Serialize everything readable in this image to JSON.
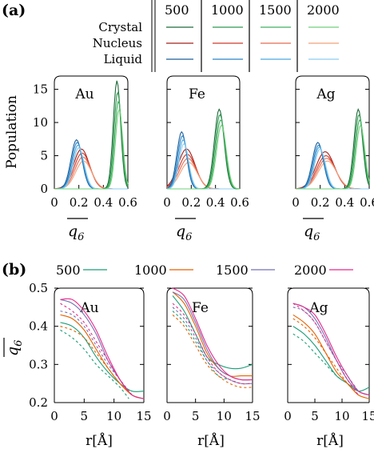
{
  "panel_labels": {
    "a": "(a)",
    "b": "(b)"
  },
  "legend_a": {
    "rows": [
      "Crystal",
      "Nucleus",
      "Liquid"
    ],
    "columns": [
      "500",
      "1000",
      "1500",
      "2000"
    ],
    "shades": {
      "Crystal": [
        "#1e6b3a",
        "#2f9a4f",
        "#3fb060",
        "#6fd07a"
      ],
      "Nucleus": [
        "#a8201a",
        "#d23a2a",
        "#e86a50",
        "#f2a07a"
      ],
      "Liquid": [
        "#1f5f9a",
        "#2a84c8",
        "#4aa8e0",
        "#8ccdf0"
      ]
    }
  },
  "legend_b": {
    "entries": [
      {
        "label": "500",
        "color": "#1b9e77"
      },
      {
        "label": "1000",
        "color": "#e66101"
      },
      {
        "label": "1500",
        "color": "#7570b3"
      },
      {
        "label": "2000",
        "color": "#e7298a"
      }
    ]
  },
  "chart_data": [
    {
      "type": "line",
      "panel": "a",
      "name": "Au",
      "ylabel": "Population",
      "xlabel": "q6 (overlined)",
      "xlim": [
        0,
        0.6
      ],
      "ylim": [
        0,
        17
      ],
      "xticks": [
        "0",
        "0.2",
        "0.4",
        "0.6"
      ],
      "yticks": [
        "0",
        "5",
        "10",
        "15"
      ],
      "peaks": {
        "Liquid": {
          "center": 0.19,
          "width": 0.045,
          "heights": [
            7.4,
            7.0,
            6.6,
            6.2
          ]
        },
        "Nucleus": {
          "center": 0.23,
          "width": 0.065,
          "heights": [
            6.0,
            5.4,
            4.8,
            4.2
          ]
        },
        "Crystal": {
          "center": 0.52,
          "width": 0.03,
          "heights": [
            16.3,
            14.6,
            13.2,
            12.0
          ]
        }
      }
    },
    {
      "type": "line",
      "panel": "a",
      "name": "Fe",
      "xlim": [
        0,
        0.6
      ],
      "ylim": [
        0,
        17
      ],
      "xticks": [
        "0",
        "0.2",
        "0.4",
        "0.6"
      ],
      "peaks": {
        "Liquid": {
          "center": 0.13,
          "width": 0.04,
          "heights": [
            8.6,
            8.0,
            7.4,
            6.8
          ]
        },
        "Nucleus": {
          "center": 0.17,
          "width": 0.07,
          "heights": [
            6.0,
            5.2,
            4.6,
            4.0
          ]
        },
        "Crystal": {
          "center": 0.44,
          "width": 0.04,
          "heights": [
            12.0,
            11.2,
            10.4,
            9.6
          ]
        }
      }
    },
    {
      "type": "line",
      "panel": "a",
      "name": "Ag",
      "xlim": [
        0,
        0.6
      ],
      "ylim": [
        0,
        17
      ],
      "xticks": [
        "0",
        "0.2",
        "0.4",
        "0.6"
      ],
      "peaks": {
        "Liquid": {
          "center": 0.19,
          "width": 0.045,
          "heights": [
            7.0,
            6.6,
            6.3,
            6.0
          ]
        },
        "Nucleus": {
          "center": 0.25,
          "width": 0.075,
          "heights": [
            5.6,
            5.0,
            4.6,
            4.2
          ]
        },
        "Crystal": {
          "center": 0.52,
          "width": 0.035,
          "heights": [
            12.0,
            11.2,
            10.4,
            9.6
          ]
        }
      }
    },
    {
      "type": "line",
      "panel": "b",
      "name": "Au",
      "ylabel": "q6 (overlined)",
      "xlabel": "r[Å]",
      "xlim": [
        0,
        15
      ],
      "ylim": [
        0.2,
        0.5
      ],
      "xticks": [
        "0",
        "5",
        "10",
        "15"
      ],
      "yticks": [
        "0.2",
        "0.3",
        "0.4",
        "0.5"
      ],
      "series": [
        {
          "name": "500",
          "x": [
            1,
            3,
            5,
            7,
            9,
            11,
            13,
            15
          ],
          "y": [
            0.41,
            0.4,
            0.37,
            0.32,
            0.28,
            0.25,
            0.23,
            0.23
          ]
        },
        {
          "name": "1000",
          "x": [
            1,
            3,
            5,
            7,
            9,
            11,
            13,
            15
          ],
          "y": [
            0.43,
            0.42,
            0.39,
            0.34,
            0.29,
            0.25,
            0.22,
            0.21
          ]
        },
        {
          "name": "1500",
          "x": [
            1,
            3,
            5,
            7,
            9,
            11,
            13,
            15
          ],
          "y": [
            0.47,
            0.46,
            0.43,
            0.38,
            0.31,
            0.26,
            0.22,
            0.21
          ]
        },
        {
          "name": "2000",
          "x": [
            1,
            3,
            5,
            7,
            9,
            11,
            13,
            15
          ],
          "y": [
            0.47,
            0.47,
            0.44,
            0.39,
            0.32,
            0.26,
            0.22,
            0.21
          ]
        },
        {
          "name": "500",
          "dashed": true,
          "x": [
            1,
            3,
            5,
            7,
            9,
            11,
            12.5
          ],
          "y": [
            0.39,
            0.37,
            0.34,
            0.3,
            0.27,
            0.24,
            0.21
          ]
        },
        {
          "name": "1000",
          "dashed": true,
          "x": [
            1,
            3,
            5,
            7,
            9,
            11,
            13
          ],
          "y": [
            0.4,
            0.39,
            0.37,
            0.33,
            0.29,
            0.25,
            0.22
          ]
        },
        {
          "name": "1500",
          "dashed": true,
          "x": [
            1,
            3,
            5,
            7,
            9,
            11,
            13
          ],
          "y": [
            0.44,
            0.43,
            0.4,
            0.35,
            0.3,
            0.26,
            0.22
          ]
        },
        {
          "name": "2000",
          "dashed": true,
          "x": [
            1,
            3,
            5,
            7,
            9,
            11,
            13
          ],
          "y": [
            0.46,
            0.44,
            0.41,
            0.36,
            0.31,
            0.26,
            0.22
          ]
        }
      ]
    },
    {
      "type": "line",
      "panel": "b",
      "name": "Fe",
      "xlim": [
        0,
        15
      ],
      "ylim": [
        0.2,
        0.5
      ],
      "xticks": [
        "0",
        "5",
        "10",
        "15"
      ],
      "series": [
        {
          "name": "500",
          "x": [
            1,
            3,
            5,
            7,
            9,
            11,
            13,
            15
          ],
          "y": [
            0.48,
            0.44,
            0.38,
            0.32,
            0.3,
            0.29,
            0.29,
            0.3
          ]
        },
        {
          "name": "1000",
          "x": [
            1,
            3,
            5,
            7,
            9,
            11,
            13,
            15
          ],
          "y": [
            0.49,
            0.46,
            0.4,
            0.33,
            0.29,
            0.27,
            0.27,
            0.27
          ]
        },
        {
          "name": "1500",
          "x": [
            1,
            3,
            5,
            7,
            9,
            11,
            13,
            15
          ],
          "y": [
            0.49,
            0.47,
            0.41,
            0.34,
            0.29,
            0.27,
            0.26,
            0.26
          ]
        },
        {
          "name": "2000",
          "x": [
            1,
            3,
            5,
            7,
            9,
            11,
            13,
            15
          ],
          "y": [
            0.5,
            0.48,
            0.42,
            0.35,
            0.3,
            0.27,
            0.26,
            0.26
          ]
        },
        {
          "name": "500",
          "dashed": true,
          "x": [
            1,
            3,
            5,
            7,
            9,
            11,
            13,
            15
          ],
          "y": [
            0.44,
            0.41,
            0.36,
            0.31,
            0.27,
            0.26,
            0.25,
            0.25
          ]
        },
        {
          "name": "1000",
          "dashed": true,
          "x": [
            1,
            3,
            5,
            7,
            9,
            11,
            13,
            15
          ],
          "y": [
            0.43,
            0.4,
            0.35,
            0.3,
            0.27,
            0.25,
            0.24,
            0.24
          ]
        },
        {
          "name": "1500",
          "dashed": true,
          "x": [
            1,
            3,
            5,
            7,
            9,
            11,
            13,
            15
          ],
          "y": [
            0.45,
            0.42,
            0.37,
            0.31,
            0.28,
            0.26,
            0.25,
            0.25
          ]
        },
        {
          "name": "2000",
          "dashed": true,
          "x": [
            1,
            3,
            5,
            7,
            9,
            11,
            13,
            15
          ],
          "y": [
            0.46,
            0.43,
            0.38,
            0.32,
            0.28,
            0.26,
            0.25,
            0.25
          ]
        }
      ]
    },
    {
      "type": "line",
      "panel": "b",
      "name": "Ag",
      "xlim": [
        0,
        15
      ],
      "ylim": [
        0.2,
        0.5
      ],
      "xticks": [
        "0",
        "5",
        "10",
        "15"
      ],
      "series": [
        {
          "name": "500",
          "x": [
            1,
            3,
            5,
            7,
            9,
            11,
            13,
            15
          ],
          "y": [
            0.4,
            0.38,
            0.35,
            0.31,
            0.27,
            0.25,
            0.23,
            0.24
          ]
        },
        {
          "name": "1000",
          "x": [
            1,
            3,
            5,
            7,
            9,
            11,
            13,
            15
          ],
          "y": [
            0.43,
            0.41,
            0.38,
            0.33,
            0.28,
            0.25,
            0.22,
            0.21
          ]
        },
        {
          "name": "1500",
          "x": [
            1,
            3,
            5,
            7,
            9,
            11,
            13,
            15
          ],
          "y": [
            0.46,
            0.45,
            0.42,
            0.37,
            0.31,
            0.26,
            0.23,
            0.22
          ]
        },
        {
          "name": "2000",
          "x": [
            1,
            3,
            5,
            7,
            9,
            11,
            13,
            15
          ],
          "y": [
            0.46,
            0.45,
            0.43,
            0.38,
            0.32,
            0.27,
            0.23,
            0.22
          ]
        },
        {
          "name": "500",
          "dashed": true,
          "x": [
            1,
            3,
            5,
            7,
            9,
            10
          ],
          "y": [
            0.38,
            0.36,
            0.33,
            0.3,
            0.27,
            0.26
          ]
        },
        {
          "name": "1000",
          "dashed": true,
          "x": [
            1,
            3,
            5,
            7,
            9,
            11,
            13
          ],
          "y": [
            0.42,
            0.4,
            0.37,
            0.33,
            0.29,
            0.25,
            0.22
          ]
        },
        {
          "name": "1500",
          "dashed": true,
          "x": [
            1,
            3,
            5,
            7,
            9,
            11,
            13
          ],
          "y": [
            0.45,
            0.44,
            0.41,
            0.36,
            0.31,
            0.27,
            0.23
          ]
        },
        {
          "name": "2000",
          "dashed": true,
          "x": [
            1,
            3,
            5,
            7,
            9,
            11,
            13
          ],
          "y": [
            0.46,
            0.44,
            0.41,
            0.36,
            0.31,
            0.26,
            0.22
          ]
        }
      ]
    }
  ]
}
